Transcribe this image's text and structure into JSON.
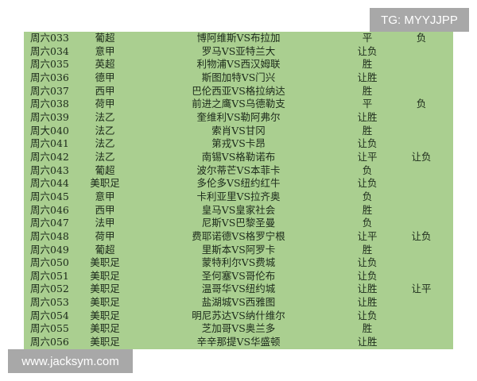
{
  "watermark_top": "TG: MYYJJPP",
  "watermark_bottom": "www.jacksym.com",
  "rows": [
    [
      "周六033",
      "葡超",
      "博阿维斯VS布拉加",
      "平",
      "负"
    ],
    [
      "周六034",
      "意甲",
      "罗马VS亚特兰大",
      "让负",
      ""
    ],
    [
      "周六035",
      "英超",
      "利物浦VS西汉姆联",
      "胜",
      ""
    ],
    [
      "周六036",
      "德甲",
      "斯图加特VS门兴",
      "让胜",
      ""
    ],
    [
      "周六037",
      "西甲",
      "巴伦西亚VS格拉纳达",
      "胜",
      ""
    ],
    [
      "周六038",
      "荷甲",
      "前进之鹰VS乌德勒支",
      "平",
      "负"
    ],
    [
      "周六039",
      "法乙",
      "奎维利VS勒阿弗尔",
      "让胜",
      ""
    ],
    [
      "周大040",
      "法乙",
      "索肖VS甘冈",
      "胜",
      ""
    ],
    [
      "周六041",
      "法乙",
      "第戎VS卡昂",
      "让负",
      ""
    ],
    [
      "周六042",
      "法乙",
      "南锡VS格勒诺布",
      "让平",
      "让负"
    ],
    [
      "周六043",
      "葡超",
      "波尔蒂芒VS本菲卡",
      "负",
      ""
    ],
    [
      "周六044",
      "美职足",
      "多伦多VS纽约红牛",
      "让负",
      ""
    ],
    [
      "周六045",
      "意甲",
      "卡利亚里VS拉齐奥",
      "负",
      ""
    ],
    [
      "周六046",
      "西甲",
      "皇马VS皇家社会",
      "胜",
      ""
    ],
    [
      "周六047",
      "法甲",
      "尼斯VS巴黎圣曼",
      "负",
      ""
    ],
    [
      "周六048",
      "荷甲",
      "费耶诺德VS格罗宁根",
      "让平",
      "让负"
    ],
    [
      "周六049",
      "葡超",
      "里斯本VS阿罗卡",
      "胜",
      ""
    ],
    [
      "周六050",
      "美职足",
      "蒙特利尔VS费城",
      "让负",
      ""
    ],
    [
      "周六051",
      "美职足",
      "圣何塞VS哥伦布",
      "让负",
      ""
    ],
    [
      "周六052",
      "美职足",
      "温哥华VS纽约城",
      "让胜",
      "让平"
    ],
    [
      "周六053",
      "美职足",
      "盐湖城VS西雅图",
      "让胜",
      ""
    ],
    [
      "周六054",
      "美职足",
      "明尼苏达VS纳什维尔",
      "让负",
      ""
    ],
    [
      "周六055",
      "美职足",
      "芝加哥VS奥兰多",
      "胜",
      ""
    ],
    [
      "周六056",
      "美职足",
      "辛辛那提VS华盛顿",
      "让胜",
      ""
    ]
  ]
}
